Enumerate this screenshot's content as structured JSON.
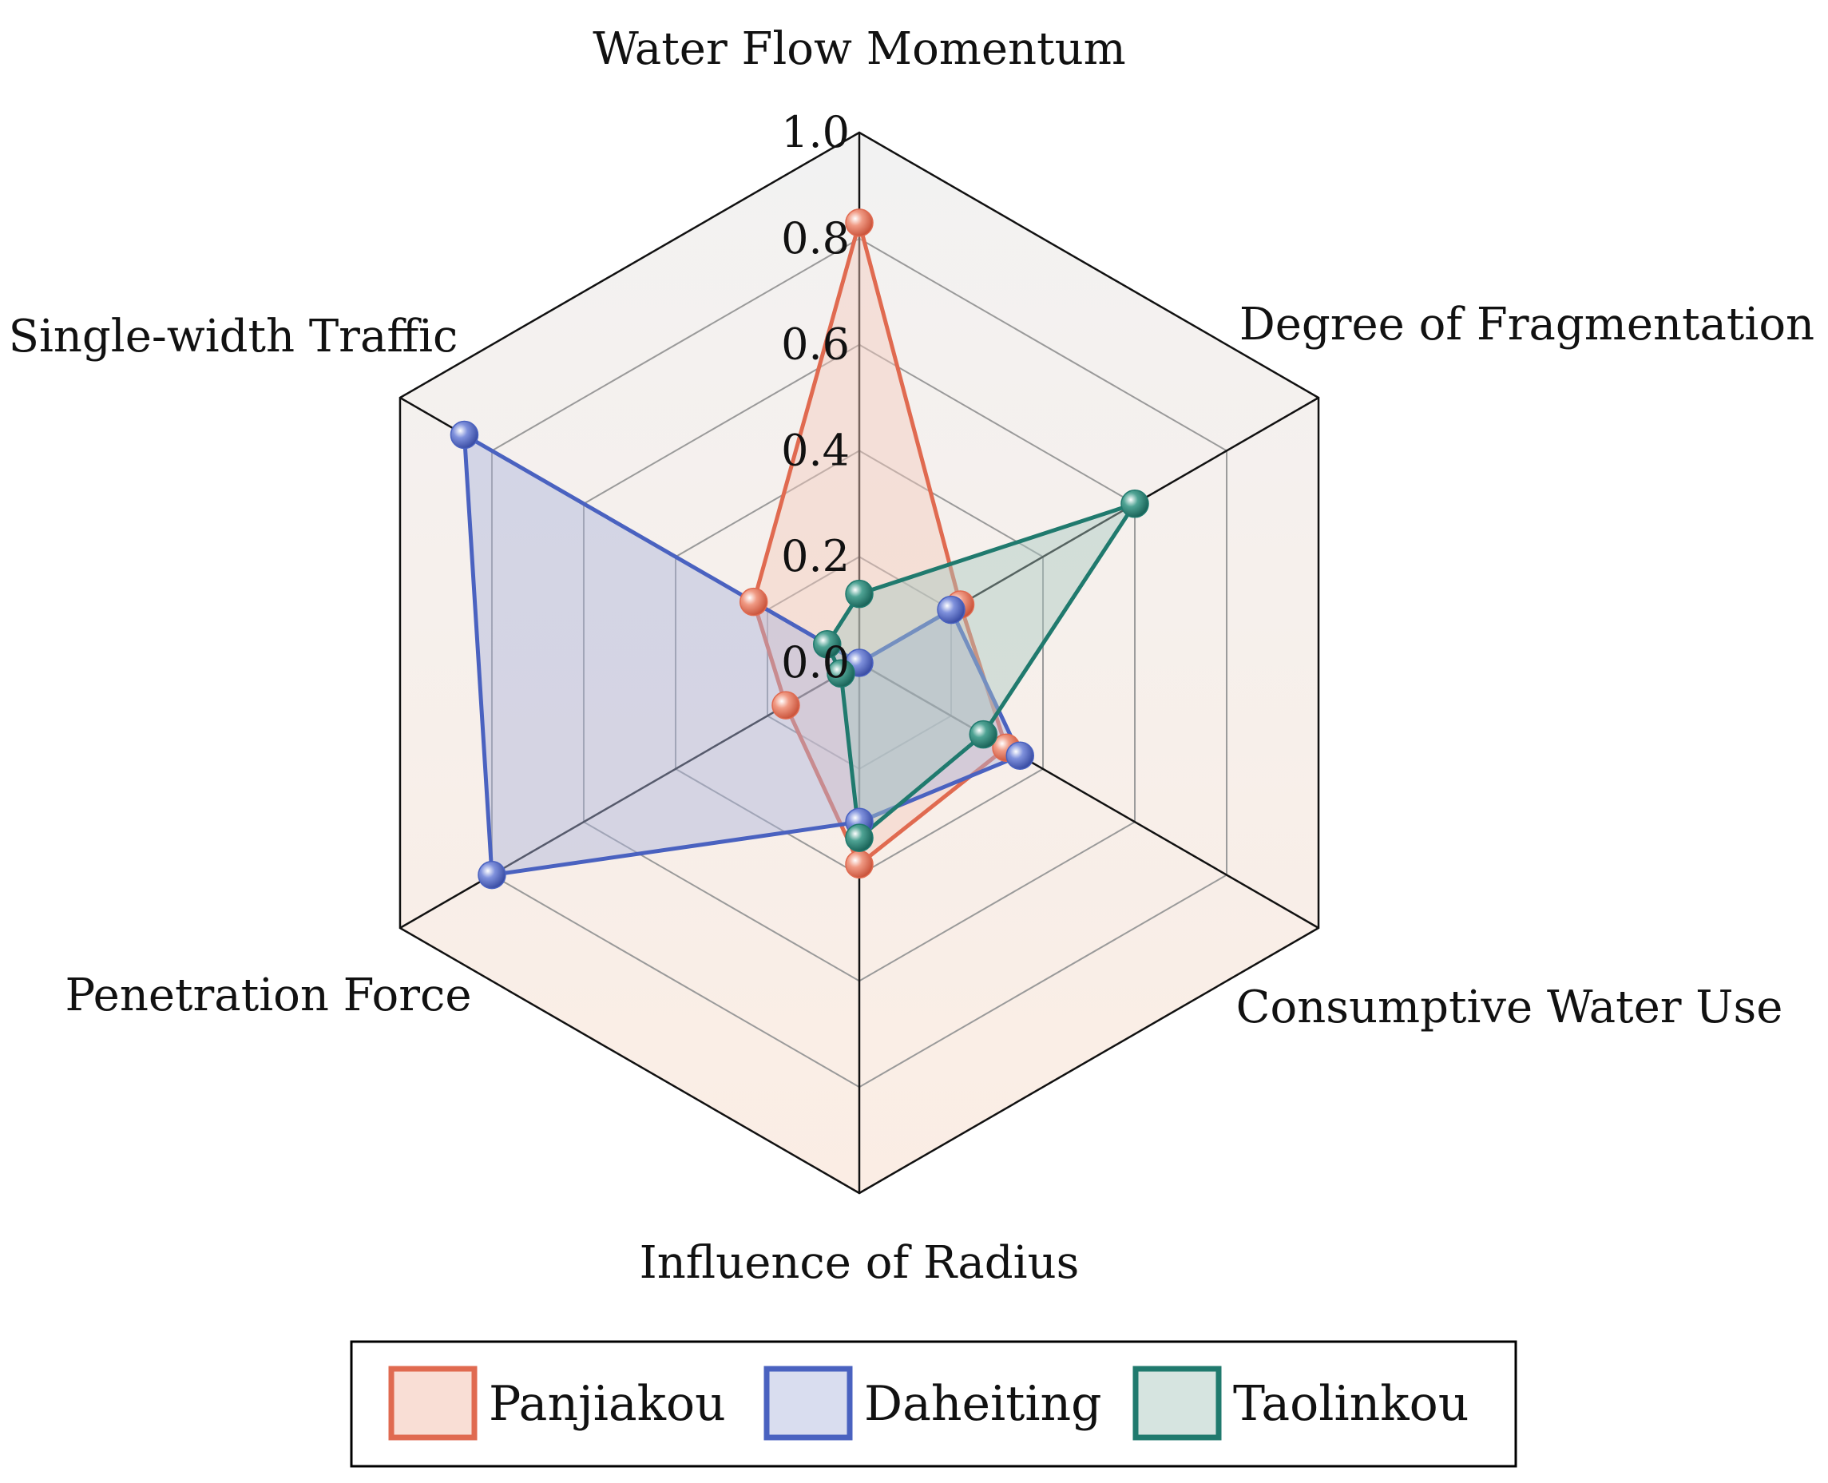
{
  "chart_data": {
    "type": "radar",
    "axes": [
      "Water Flow Momentum",
      "Degree of Fragmentation",
      "Consumptive Water Use",
      "Influence of Radius",
      "Penetration Force",
      "Single-width Traffic"
    ],
    "rlim": [
      0,
      1.0
    ],
    "ticks": [
      "0.0",
      "0.2",
      "0.4",
      "0.6",
      "0.8",
      "1.0"
    ],
    "tick_values": [
      0,
      0.2,
      0.4,
      0.6,
      0.8,
      1.0
    ],
    "grid": true,
    "legend_position": "bottom",
    "series": [
      {
        "name": "Panjiakou",
        "color": "#e06a50",
        "fill": "#f4c9bd",
        "values": [
          0.83,
          0.22,
          0.32,
          0.38,
          0.16,
          0.23
        ]
      },
      {
        "name": "Daheiting",
        "color": "#4a62c0",
        "fill": "#aab4dc",
        "values": [
          0.0,
          0.2,
          0.35,
          0.3,
          0.8,
          0.86
        ]
      },
      {
        "name": "Taolinkou",
        "color": "#207a6e",
        "fill": "#a9c8c0",
        "values": [
          0.13,
          0.6,
          0.27,
          0.33,
          0.04,
          0.07
        ]
      }
    ]
  }
}
